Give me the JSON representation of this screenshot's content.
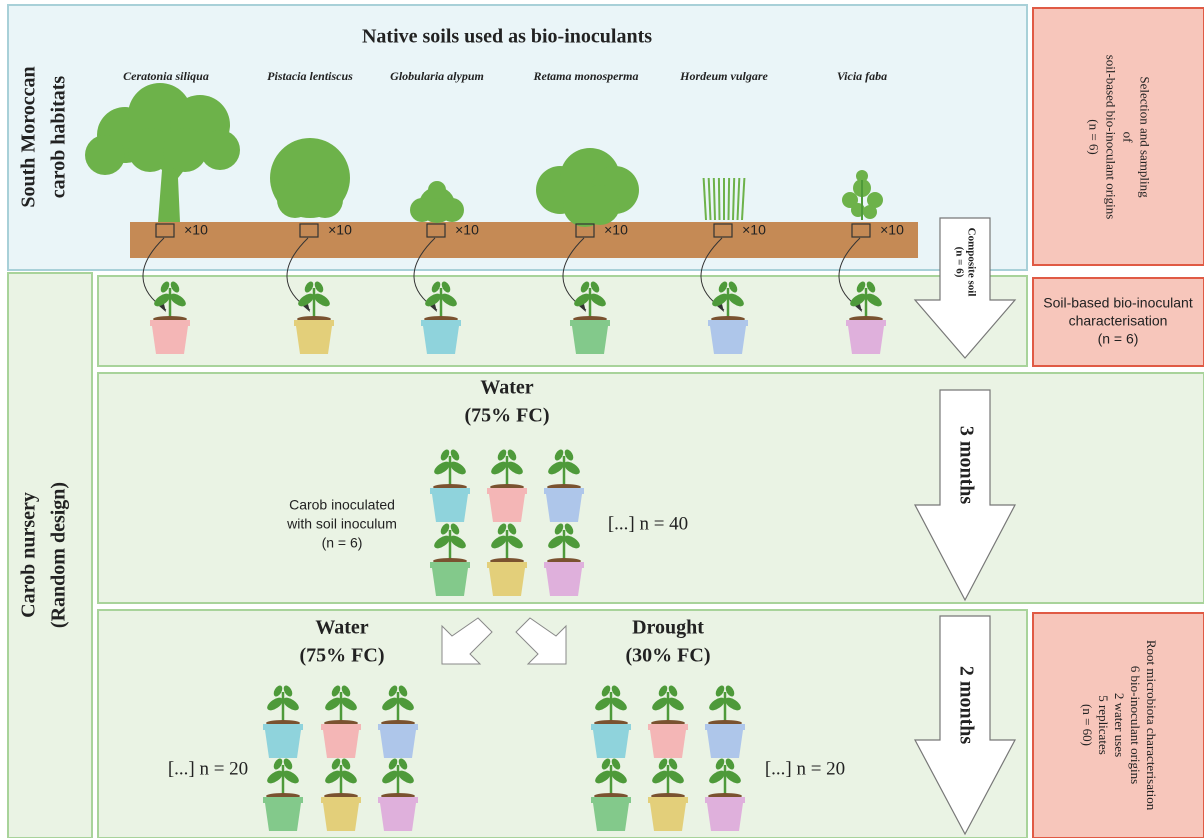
{
  "habitat": {
    "label": [
      "South Moroccan",
      "carob habitats"
    ],
    "title": "Native soils used as bio-inoculants",
    "species": [
      "Ceratonia siliqua",
      "Pistacia lentiscus",
      "Globularia alypum",
      "Retama monosperma",
      "Hordeum vulgare",
      "Vicia faba"
    ],
    "sample_count": "×10"
  },
  "steps": {
    "selection": [
      "Selection and sampling",
      "of",
      "soil-based bio-inoculant origins",
      "(n = 6)"
    ],
    "characterisation": [
      "Soil-based bio-inoculant",
      "characterisation",
      "(n = 6)"
    ],
    "root": [
      "Root microbiota characterisation",
      "6 bio-inoculant origins",
      "2 water uses",
      "5 replicates",
      "(n = 60)"
    ]
  },
  "nursery": {
    "label": [
      "Carob nursery",
      "(Random design)"
    ],
    "composite": [
      "Composite soil",
      "(n = 6)"
    ],
    "stage1": {
      "title": [
        "Water",
        "(75% FC)"
      ],
      "note": [
        "Carob inoculated",
        "with soil inoculum",
        "(n = 6)"
      ],
      "count": "[...] n = 40",
      "duration": "3 months"
    },
    "stage2": {
      "water": [
        "Water",
        "(75% FC)"
      ],
      "drought": [
        "Drought",
        "(30% FC)"
      ],
      "water_count": "[...] n = 20",
      "drought_count": "[...] n = 20",
      "duration": "2 months"
    }
  }
}
